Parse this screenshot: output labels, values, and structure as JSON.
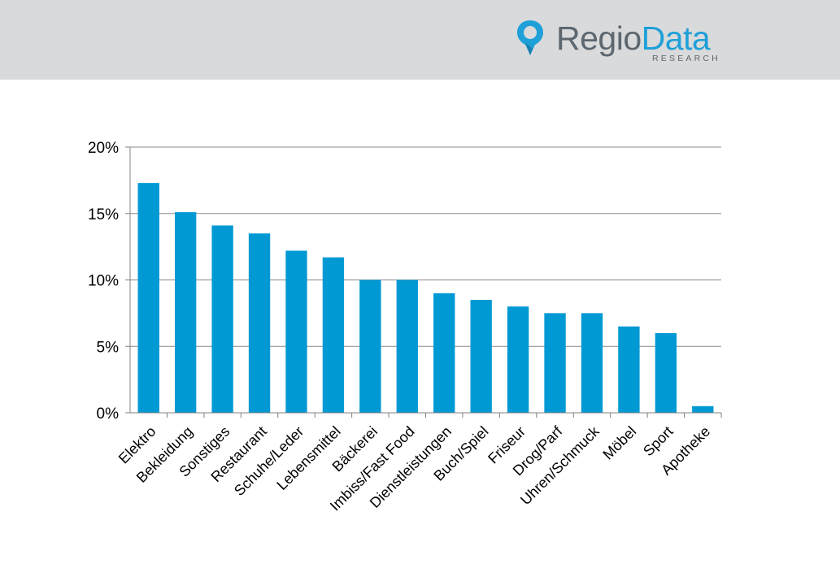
{
  "header": {
    "logo": {
      "part1": "Regio",
      "part2": "Data",
      "sub": "RESEARCH",
      "icon": "location-pin-icon",
      "colors": {
        "dark": "#5c6770",
        "accent": "#1fa0d8"
      }
    }
  },
  "colors": {
    "header_bg": "#d9dadb",
    "bar": "#0099d4",
    "gridline": "#888888"
  },
  "chart_data": {
    "type": "bar",
    "title": "",
    "xlabel": "",
    "ylabel": "",
    "categories": [
      "Elektro",
      "Bekleidung",
      "Sonstiges",
      "Restaurant",
      "Schuhe/Leder",
      "Lebensmittel",
      "Bäckerei",
      "Imbiss/Fast Food",
      "Dienstleistungen",
      "Buch/Spiel",
      "Friseur",
      "Drog/Parf",
      "Uhren/Schmuck",
      "Möbel",
      "Sport",
      "Apotheke"
    ],
    "values": [
      17.3,
      15.1,
      14.1,
      13.5,
      12.2,
      11.7,
      10.0,
      10.0,
      9.0,
      8.5,
      8.0,
      7.5,
      7.5,
      6.5,
      6.0,
      0.5
    ],
    "ylim": [
      0,
      20
    ],
    "yticks": [
      0,
      5,
      10,
      15,
      20
    ],
    "ytick_labels": [
      "0%",
      "5%",
      "10%",
      "15%",
      "20%"
    ],
    "grid": true,
    "legend": "none"
  }
}
